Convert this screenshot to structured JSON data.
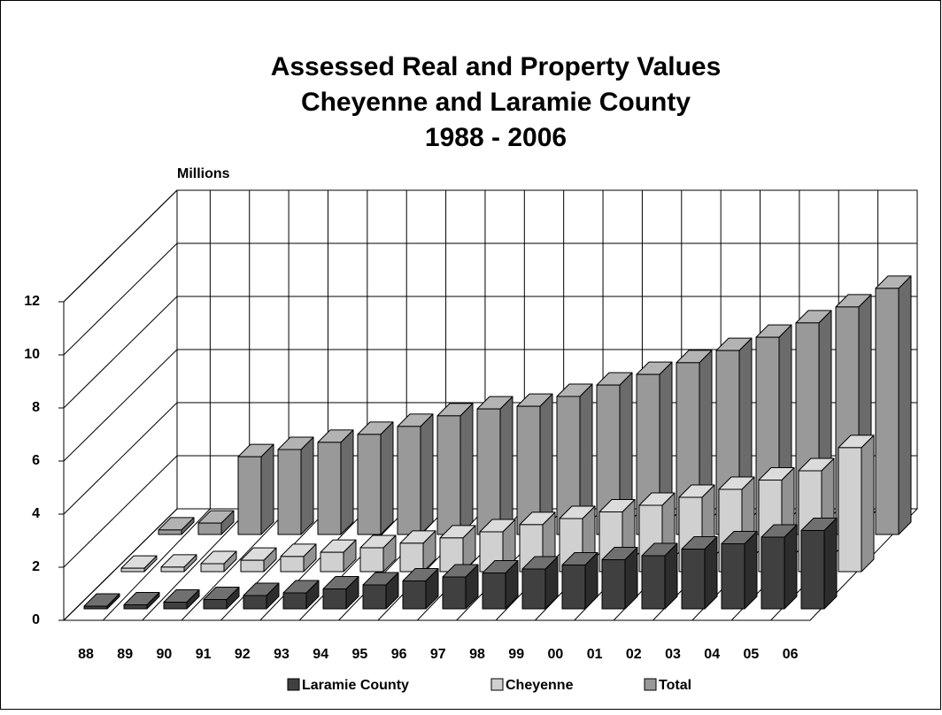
{
  "chart_data": {
    "type": "bar3d",
    "title": [
      "Assessed Real and Property Values",
      "Cheyenne and Laramie County",
      "1988 - 2006"
    ],
    "y_axis_label": "Millions",
    "categories": [
      "88",
      "89",
      "90",
      "91",
      "92",
      "93",
      "94",
      "95",
      "96",
      "97",
      "98",
      "99",
      "00",
      "01",
      "02",
      "03",
      "04",
      "05",
      "06"
    ],
    "series": [
      {
        "name": "Laramie County",
        "color": "#404040",
        "values": [
          0.1,
          0.15,
          0.25,
          0.35,
          0.5,
          0.6,
          0.75,
          0.9,
          1.05,
          1.2,
          1.35,
          1.5,
          1.65,
          1.85,
          2.0,
          2.25,
          2.45,
          2.7,
          2.95
        ]
      },
      {
        "name": "Cheyenne",
        "color": "#d0d0d0",
        "values": [
          0.13,
          0.17,
          0.3,
          0.43,
          0.57,
          0.73,
          0.9,
          1.07,
          1.27,
          1.5,
          1.77,
          2.0,
          2.25,
          2.5,
          2.8,
          3.1,
          3.45,
          3.8,
          4.67
        ]
      },
      {
        "name": "Total",
        "color": "#999999",
        "values": [
          0.17,
          0.43,
          2.93,
          3.2,
          3.47,
          3.77,
          4.07,
          4.47,
          4.73,
          4.83,
          5.2,
          5.63,
          6.03,
          6.47,
          6.93,
          7.43,
          7.97,
          8.57,
          9.27
        ]
      }
    ],
    "ylim": [
      0,
      12
    ],
    "yticks": [
      0,
      2,
      4,
      6,
      8,
      10,
      12
    ],
    "grid": true,
    "legend": "bottom"
  }
}
